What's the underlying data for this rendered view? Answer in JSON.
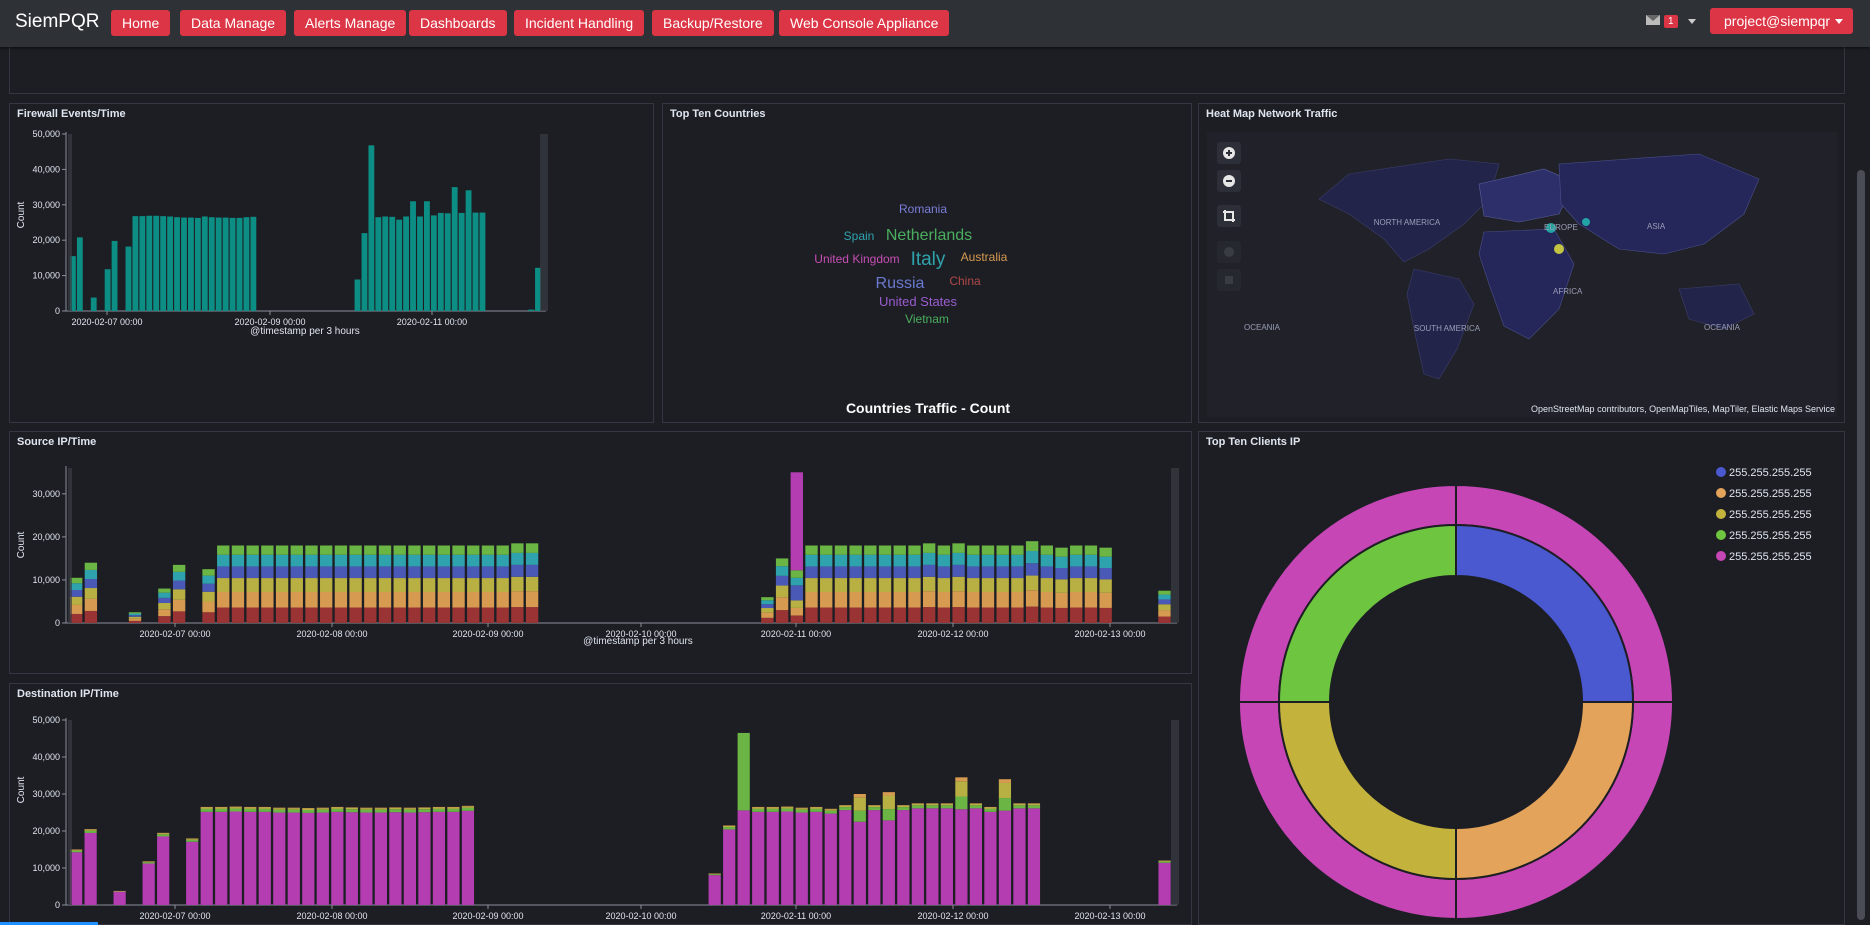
{
  "app": {
    "brand": "SiemPQR"
  },
  "nav": {
    "items": [
      {
        "label": "Home"
      },
      {
        "label": "Data Manage"
      },
      {
        "label": "Alerts Manage"
      },
      {
        "label": "Dashboards"
      },
      {
        "label": "Incident Handling"
      },
      {
        "label": "Backup/Restore"
      },
      {
        "label": "Web Console Appliance"
      }
    ],
    "notification_count": "1",
    "user": "project@siempqr",
    "accent": "#dc3545"
  },
  "panels": {
    "firewall": {
      "title": "Firewall Events/Time"
    },
    "countries": {
      "title": "Top Ten Countries",
      "caption": "Countries Traffic - Count"
    },
    "heatmap": {
      "title": "Heat Map Network Traffic",
      "attribution": "OpenStreetMap contributors, OpenMapTiles, MapTiler, Elastic Maps Service",
      "labels": [
        "NORTH AMERICA",
        "EUROPE",
        "ASIA",
        "AFRICA",
        "SOUTH AMERICA",
        "OCEANIA",
        "OCEANIA"
      ]
    },
    "source": {
      "title": "Source IP/Time"
    },
    "clients": {
      "title": "Top Ten Clients IP"
    },
    "destination": {
      "title": "Destination IP/Time"
    }
  },
  "chart_data": [
    {
      "type": "bar",
      "id": "firewall",
      "title": "Firewall Events/Time",
      "xlabel": "@timestamp per 3 hours",
      "ylabel": "Count",
      "ylim": [
        0,
        50000
      ],
      "yticks": [
        "0",
        "10,000",
        "20,000",
        "30,000",
        "40,000",
        "50,000"
      ],
      "xticks": [
        "2020-02-07 00:00",
        "2020-02-09 00:00",
        "2020-02-11 00:00"
      ],
      "color": "#0c8e84",
      "values": [
        15500,
        20800,
        0,
        3800,
        0,
        11800,
        19800,
        0,
        18200,
        26800,
        26800,
        26900,
        26900,
        26800,
        26700,
        26500,
        26400,
        26400,
        26300,
        26700,
        26500,
        26400,
        26400,
        26300,
        26300,
        26500,
        26600,
        0,
        0,
        0,
        0,
        0,
        0,
        0,
        0,
        0,
        0,
        0,
        0,
        0,
        0,
        8900,
        22000,
        46800,
        26500,
        26700,
        26600,
        25800,
        26700,
        31000,
        26700,
        31000,
        27000,
        27700,
        27600,
        35000,
        27700,
        34100,
        27800,
        27800,
        0,
        0,
        0,
        0,
        0,
        0,
        400,
        12200
      ]
    },
    {
      "type": "bar",
      "id": "source",
      "title": "Source IP/Time",
      "xlabel": "@timestamp per 3 hours",
      "ylabel": "Count",
      "ylim": [
        0,
        36000
      ],
      "yticks": [
        "0",
        "10,000",
        "20,000",
        "30,000"
      ],
      "xticks": [
        "2020-02-07 00:00",
        "2020-02-08 00:00",
        "2020-02-09 00:00",
        "2020-02-10 00:00",
        "2020-02-11 00:00",
        "2020-02-12 00:00",
        "2020-02-13 00:00"
      ],
      "stacked": true,
      "colors": [
        "#9a3434",
        "#d69a50",
        "#b9b043",
        "#4a59b6",
        "#2fa3ad",
        "#6ab544",
        "#b43db2"
      ],
      "totals": [
        10500,
        14000,
        0,
        0,
        2500,
        0,
        8000,
        13500,
        0,
        12500,
        18000,
        18000,
        18000,
        18000,
        18000,
        18000,
        18000,
        18000,
        18000,
        18000,
        18000,
        18000,
        18000,
        18000,
        18000,
        18000,
        18000,
        18000,
        18000,
        18000,
        18500,
        18500,
        0,
        0,
        0,
        0,
        0,
        0,
        0,
        0,
        0,
        0,
        0,
        0,
        0,
        0,
        0,
        6000,
        15000,
        35000,
        18000,
        18000,
        18000,
        18000,
        18000,
        18000,
        18000,
        18000,
        18500,
        18000,
        18500,
        18000,
        18000,
        18000,
        18000,
        19000,
        18000,
        17500,
        18000,
        18000,
        17500,
        0,
        0,
        0,
        7500
      ]
    },
    {
      "type": "bar",
      "id": "destination",
      "title": "Destination IP/Time",
      "xlabel": "@timestamp per 3 hours",
      "ylabel": "Count",
      "ylim": [
        0,
        50000
      ],
      "yticks": [
        "0",
        "10,000",
        "20,000",
        "30,000",
        "40,000",
        "50,000"
      ],
      "xticks": [
        "2020-02-07 00:00",
        "2020-02-08 00:00",
        "2020-02-09 00:00",
        "2020-02-10 00:00",
        "2020-02-11 00:00",
        "2020-02-12 00:00",
        "2020-02-13 00:00"
      ],
      "stacked": true,
      "colors": [
        "#b43db2",
        "#6ab544",
        "#b9b043",
        "#d69a50"
      ],
      "totals": [
        15000,
        20500,
        0,
        3800,
        0,
        11800,
        19500,
        0,
        18000,
        26500,
        26500,
        26600,
        26500,
        26500,
        26300,
        26300,
        26200,
        26300,
        26500,
        26400,
        26300,
        26300,
        26400,
        26300,
        26400,
        26500,
        26500,
        26800,
        0,
        0,
        0,
        0,
        0,
        0,
        0,
        0,
        0,
        0,
        0,
        0,
        0,
        0,
        0,
        0,
        8500,
        21500,
        46500,
        26500,
        26500,
        26600,
        26300,
        26500,
        26000,
        27000,
        30000,
        27000,
        30500,
        27000,
        27500,
        27500,
        27500,
        34500,
        27500,
        26500,
        34000,
        27500,
        27500,
        0,
        0,
        0,
        0,
        0,
        0,
        0,
        0,
        12000
      ]
    },
    {
      "type": "pie",
      "id": "clients",
      "title": "Top Ten Clients IP",
      "legend": [
        {
          "label": "255.255.255.255",
          "color": "#4a59d0"
        },
        {
          "label": "255.255.255.255",
          "color": "#e3a35a"
        },
        {
          "label": "255.255.255.255",
          "color": "#c3b33c"
        },
        {
          "label": "255.255.255.255",
          "color": "#6ec640"
        },
        {
          "label": "255.255.255.255",
          "color": "#c746b6"
        }
      ],
      "inner_values": [
        25,
        25,
        25,
        25
      ],
      "outer_values": [
        100
      ]
    }
  ],
  "wordcloud": [
    {
      "text": "Romania",
      "color": "#7a7ed8"
    },
    {
      "text": "Spain",
      "color": "#2fa3ad"
    },
    {
      "text": "Netherlands",
      "color": "#4aae5e"
    },
    {
      "text": "United Kingdom",
      "color": "#c64eb4"
    },
    {
      "text": "Italy",
      "color": "#2fa3ad"
    },
    {
      "text": "Australia",
      "color": "#d69a50"
    },
    {
      "text": "Russia",
      "color": "#6a79d0"
    },
    {
      "text": "China",
      "color": "#b04848"
    },
    {
      "text": "United States",
      "color": "#9b5cd0"
    },
    {
      "text": "Vietnam",
      "color": "#4aae5e"
    }
  ]
}
